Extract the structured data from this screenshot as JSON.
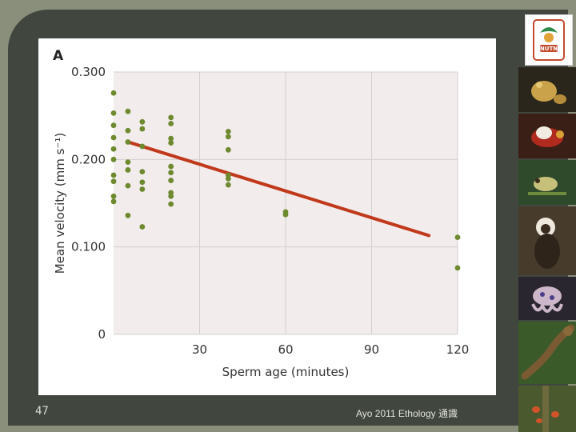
{
  "slide": {
    "page_number": "47",
    "footer": "Ayo 2011 Ethology 通識"
  },
  "logo": {
    "text": "NUTN",
    "icon": "nutn-university-logo"
  },
  "photos": [
    {
      "name": "frog-photo-1",
      "icon": "frog-photo"
    },
    {
      "name": "bird-photo",
      "icon": "bird-photo"
    },
    {
      "name": "frog-photo-2",
      "icon": "frog-photo"
    },
    {
      "name": "monkey-photo",
      "icon": "monkey-photo"
    },
    {
      "name": "octopus-photo",
      "icon": "octopus-photo"
    },
    {
      "name": "lizard-photo",
      "icon": "lizard-photo"
    },
    {
      "name": "insects-photo",
      "icon": "insects-photo"
    }
  ],
  "chart_data": {
    "type": "scatter",
    "panel_label": "A",
    "title": "",
    "xlabel": "Sperm age (minutes)",
    "ylabel": "Mean velocity (mm s⁻¹)",
    "xlim": [
      0,
      120
    ],
    "ylim": [
      0,
      0.3
    ],
    "x_ticks": [
      {
        "value": 30,
        "label": "30"
      },
      {
        "value": 60,
        "label": "60"
      },
      {
        "value": 90,
        "label": "90"
      },
      {
        "value": 120,
        "label": "120"
      }
    ],
    "y_ticks": [
      {
        "value": 0,
        "label": "0"
      },
      {
        "value": 0.1,
        "label": "0.100"
      },
      {
        "value": 0.2,
        "label": "0.200"
      },
      {
        "value": 0.3,
        "label": "0.300"
      }
    ],
    "grid": true,
    "point_color": "#6e8a2f",
    "trend_color": "#c0391b",
    "points": [
      {
        "x": 0,
        "y": 0.276
      },
      {
        "x": 0,
        "y": 0.253
      },
      {
        "x": 0,
        "y": 0.239
      },
      {
        "x": 0,
        "y": 0.225
      },
      {
        "x": 0,
        "y": 0.212
      },
      {
        "x": 0,
        "y": 0.2
      },
      {
        "x": 0,
        "y": 0.182
      },
      {
        "x": 0,
        "y": 0.175
      },
      {
        "x": 0,
        "y": 0.158
      },
      {
        "x": 0,
        "y": 0.152
      },
      {
        "x": 5,
        "y": 0.255
      },
      {
        "x": 5,
        "y": 0.233
      },
      {
        "x": 5,
        "y": 0.22
      },
      {
        "x": 5,
        "y": 0.197
      },
      {
        "x": 5,
        "y": 0.188
      },
      {
        "x": 5,
        "y": 0.17
      },
      {
        "x": 5,
        "y": 0.136
      },
      {
        "x": 10,
        "y": 0.243
      },
      {
        "x": 10,
        "y": 0.235
      },
      {
        "x": 10,
        "y": 0.215
      },
      {
        "x": 10,
        "y": 0.186
      },
      {
        "x": 10,
        "y": 0.174
      },
      {
        "x": 10,
        "y": 0.166
      },
      {
        "x": 10,
        "y": 0.123
      },
      {
        "x": 20,
        "y": 0.248
      },
      {
        "x": 20,
        "y": 0.241
      },
      {
        "x": 20,
        "y": 0.224
      },
      {
        "x": 20,
        "y": 0.219
      },
      {
        "x": 20,
        "y": 0.192
      },
      {
        "x": 20,
        "y": 0.185
      },
      {
        "x": 20,
        "y": 0.176
      },
      {
        "x": 20,
        "y": 0.162
      },
      {
        "x": 20,
        "y": 0.158
      },
      {
        "x": 20,
        "y": 0.149
      },
      {
        "x": 40,
        "y": 0.232
      },
      {
        "x": 40,
        "y": 0.226
      },
      {
        "x": 40,
        "y": 0.211
      },
      {
        "x": 40,
        "y": 0.182
      },
      {
        "x": 40,
        "y": 0.178
      },
      {
        "x": 40,
        "y": 0.171
      },
      {
        "x": 60,
        "y": 0.14
      },
      {
        "x": 60,
        "y": 0.137
      },
      {
        "x": 120,
        "y": 0.111
      },
      {
        "x": 120,
        "y": 0.076
      }
    ],
    "trend_line": {
      "x1": 5,
      "y1": 0.22,
      "x2": 110,
      "y2": 0.113
    }
  }
}
